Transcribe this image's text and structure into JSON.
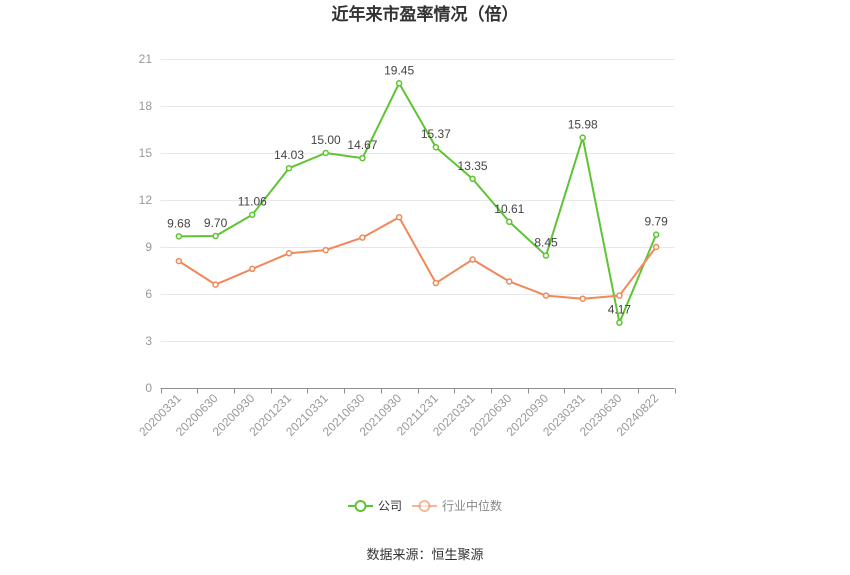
{
  "chart_data": {
    "type": "line",
    "title": "近年来市盈率情况（倍）",
    "categories": [
      "20200331",
      "20200630",
      "20200930",
      "20201231",
      "20210331",
      "20210630",
      "20210930",
      "20211231",
      "20220331",
      "20220630",
      "20220930",
      "20230331",
      "20230630",
      "20240822"
    ],
    "ylim": [
      0,
      21
    ],
    "yticks": [
      0,
      3,
      6,
      9,
      12,
      15,
      18,
      21
    ],
    "grid": true,
    "legend": "bottom",
    "series": [
      {
        "name": "公司",
        "color": "#5ec434",
        "values": [
          9.68,
          9.7,
          11.06,
          14.03,
          15.0,
          14.67,
          19.45,
          15.37,
          13.35,
          10.61,
          8.45,
          15.98,
          4.17,
          9.79
        ],
        "data_labels": [
          "9.68",
          "9.70",
          "11.06",
          "14.03",
          "15.00",
          "14.67",
          "19.45",
          "15.37",
          "13.35",
          "10.61",
          "8.45",
          "15.98",
          "4.17",
          "9.79"
        ]
      },
      {
        "name": "行业中位数",
        "color": "#f0885a",
        "values": [
          8.1,
          6.6,
          7.6,
          8.6,
          8.8,
          9.6,
          10.9,
          6.7,
          8.2,
          6.8,
          5.9,
          5.7,
          5.9,
          9.0
        ]
      }
    ]
  },
  "source": "数据来源：恒生聚源"
}
